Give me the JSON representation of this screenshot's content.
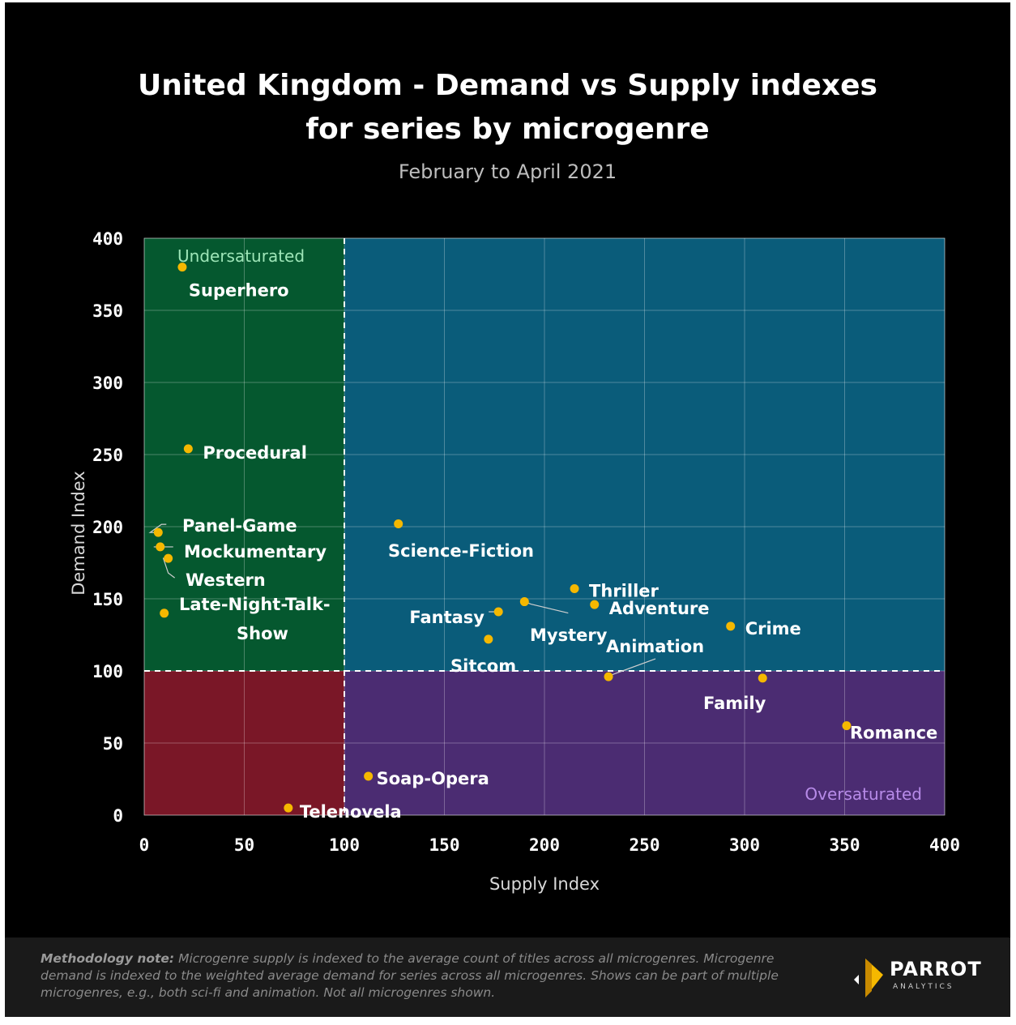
{
  "title_line1": "United Kingdom - Demand vs Supply indexes",
  "title_line2": "for series by microgenre",
  "subtitle": "February to April 2021",
  "methodology": {
    "label": "Methodology note:",
    "text": " Microgenre supply is indexed to the average count of titles across all microgenres. Microgenre demand is indexed to the weighted average demand for series across all microgenres. Shows can be part of multiple microgenres, e.g., both sci-fi and animation. Not all microgenres shown."
  },
  "logo": {
    "name": "PARROT",
    "sub": "ANALYTICS"
  },
  "colors": {
    "undersaturated": "#05582f",
    "high_both": "#0a5c7a",
    "low_both": "#7a1727",
    "oversaturated": "#4b2c72",
    "point": "#f5b800"
  },
  "chart_data": {
    "type": "scatter",
    "xlabel": "Supply Index",
    "ylabel": "Demand Index",
    "xlim": [
      0,
      400
    ],
    "ylim": [
      0,
      400
    ],
    "xticks": [
      0,
      50,
      100,
      150,
      200,
      250,
      300,
      350,
      400
    ],
    "yticks": [
      0,
      50,
      100,
      150,
      200,
      250,
      300,
      350,
      400
    ],
    "grid": true,
    "reference_lines": {
      "x": 100,
      "y": 100
    },
    "quadrant_labels": {
      "top_left": "Undersaturated",
      "bottom_right": "Oversaturated"
    },
    "points": [
      {
        "label": "Superhero",
        "x": 19,
        "y": 380
      },
      {
        "label": "Procedural",
        "x": 22,
        "y": 254
      },
      {
        "label": "Panel-Game",
        "x": 7,
        "y": 196
      },
      {
        "label": "Mockumentary",
        "x": 8,
        "y": 186
      },
      {
        "label": "Western",
        "x": 12,
        "y": 178
      },
      {
        "label": "Late-Night-Talk-Show",
        "x": 10,
        "y": 140
      },
      {
        "label": "Science-Fiction",
        "x": 127,
        "y": 202
      },
      {
        "label": "Thriller",
        "x": 215,
        "y": 157
      },
      {
        "label": "Adventure",
        "x": 225,
        "y": 146
      },
      {
        "label": "Mystery",
        "x": 190,
        "y": 148
      },
      {
        "label": "Fantasy",
        "x": 177,
        "y": 141
      },
      {
        "label": "Crime",
        "x": 293,
        "y": 131
      },
      {
        "label": "Sitcom",
        "x": 172,
        "y": 122
      },
      {
        "label": "Animation",
        "x": 232,
        "y": 96
      },
      {
        "label": "Family",
        "x": 309,
        "y": 95
      },
      {
        "label": "Romance",
        "x": 351,
        "y": 62
      },
      {
        "label": "Soap-Opera",
        "x": 112,
        "y": 27
      },
      {
        "label": "Telenovela",
        "x": 72,
        "y": 5
      }
    ]
  }
}
